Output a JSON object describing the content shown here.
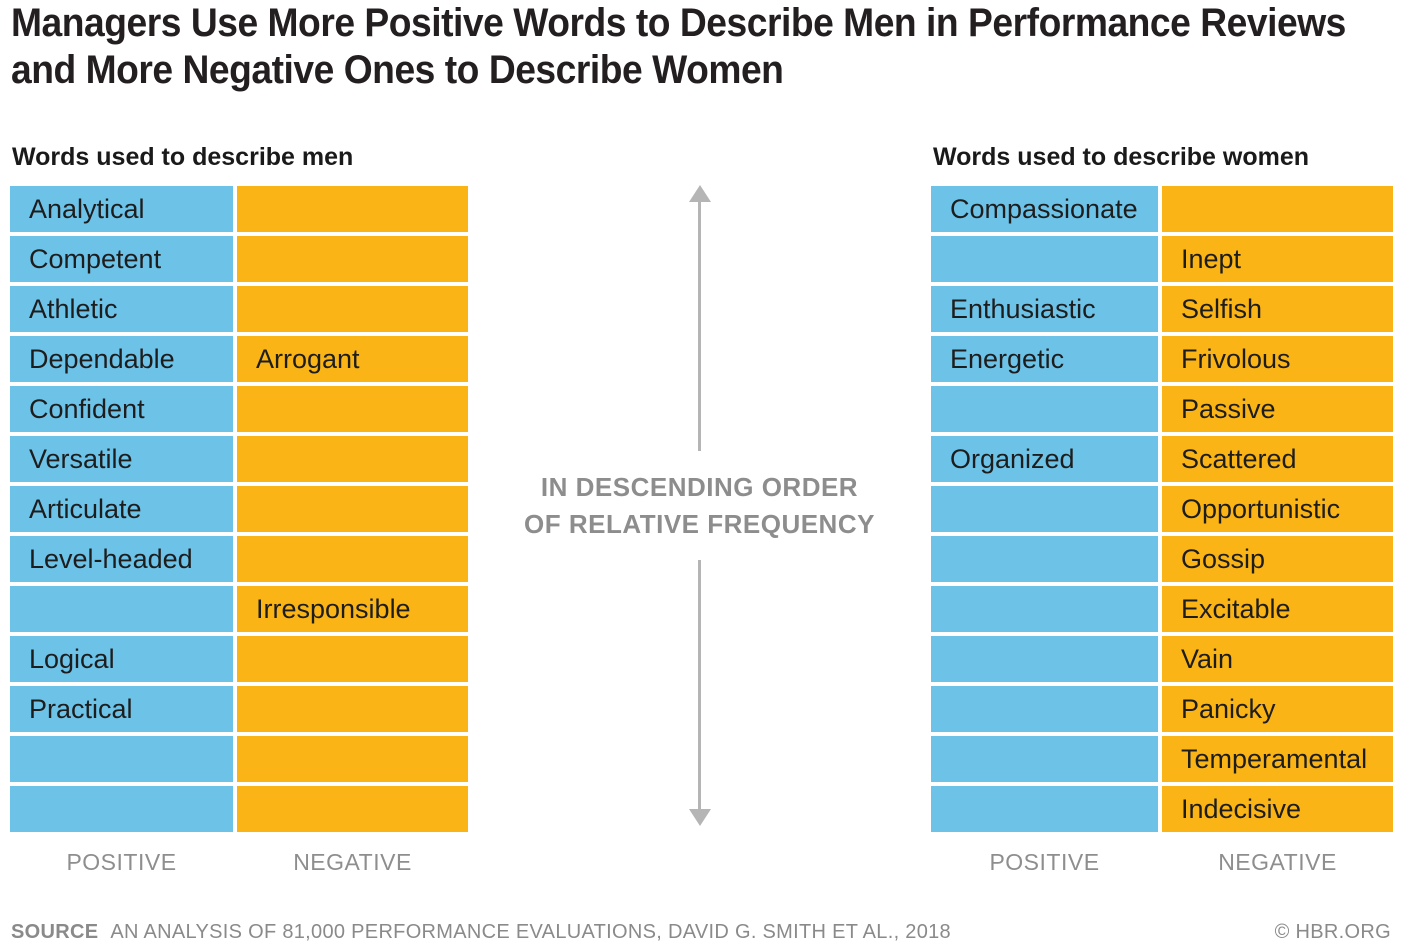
{
  "chart_data": {
    "type": "table",
    "title": "Managers Use More Positive Words to Describe Men in Performance Reviews and More Negative Ones to Describe Women",
    "annotation": [
      "IN DESCENDING ORDER",
      "OF RELATIVE FREQUENCY"
    ],
    "layout_note": "Two side-by-side word tables; rows sorted top-to-bottom in descending order of relative frequency; left column positive words (blue), right column negative words (orange).",
    "tables": [
      {
        "id": "men",
        "label": "Words used to describe men",
        "columns": [
          "POSITIVE",
          "NEGATIVE"
        ],
        "rows": [
          [
            "Analytical",
            ""
          ],
          [
            "Competent",
            ""
          ],
          [
            "Athletic",
            ""
          ],
          [
            "Dependable",
            "Arrogant"
          ],
          [
            "Confident",
            ""
          ],
          [
            "Versatile",
            ""
          ],
          [
            "Articulate",
            ""
          ],
          [
            "Level-headed",
            ""
          ],
          [
            "",
            "Irresponsible"
          ],
          [
            "Logical",
            ""
          ],
          [
            "Practical",
            ""
          ],
          [
            "",
            ""
          ],
          [
            "",
            ""
          ]
        ]
      },
      {
        "id": "women",
        "label": "Words used to describe women",
        "columns": [
          "POSITIVE",
          "NEGATIVE"
        ],
        "rows": [
          [
            "Compassionate",
            ""
          ],
          [
            "",
            "Inept"
          ],
          [
            "Enthusiastic",
            "Selfish"
          ],
          [
            "Energetic",
            "Frivolous"
          ],
          [
            "",
            "Passive"
          ],
          [
            "Organized",
            "Scattered"
          ],
          [
            "",
            "Opportunistic"
          ],
          [
            "",
            "Gossip"
          ],
          [
            "",
            "Excitable"
          ],
          [
            "",
            "Vain"
          ],
          [
            "",
            "Panicky"
          ],
          [
            "",
            "Temperamental"
          ],
          [
            "",
            "Indecisive"
          ]
        ]
      }
    ],
    "colors": {
      "positive": "#6DC2E8",
      "negative": "#FBB416",
      "arrow": "#B5B5B5",
      "muted_text": "#8E8E8E",
      "title_text": "#231F20"
    },
    "source_label": "SOURCE",
    "source": "AN ANALYSIS OF 81,000 PERFORMANCE EVALUATIONS, DAVID G. SMITH ET AL., 2018",
    "credit": "© HBR.ORG"
  }
}
